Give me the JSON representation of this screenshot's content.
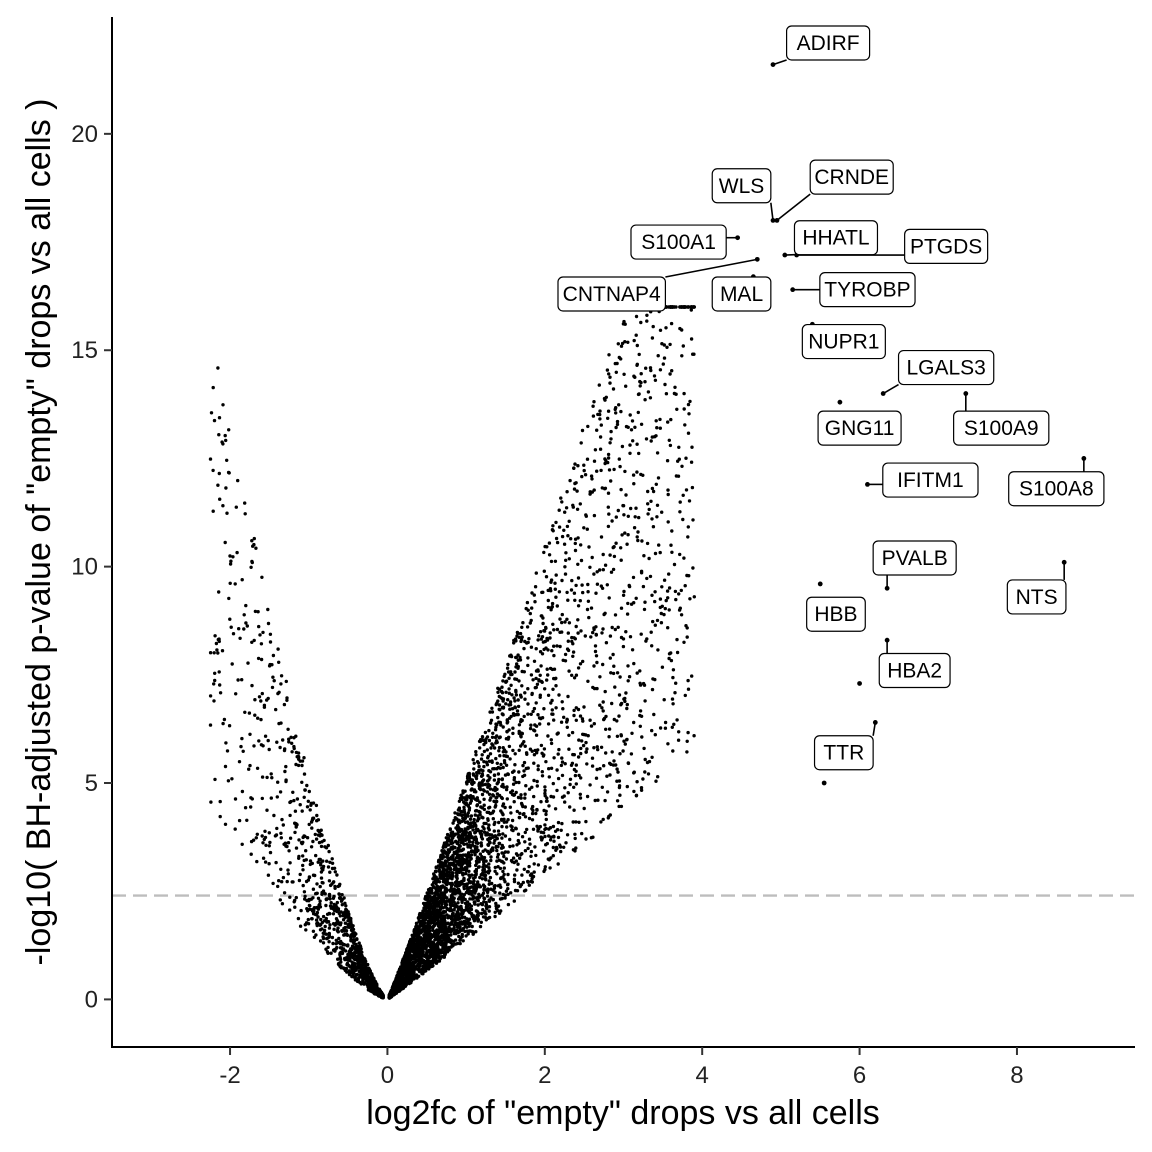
{
  "chart_data": {
    "type": "scatter",
    "title": "",
    "xlabel": "log2fc of \"empty\" drops vs all cells",
    "ylabel": "-log10( BH-adjusted p-value of \"empty\" drops vs all cells )",
    "xlim": [
      -3.5,
      9.5
    ],
    "ylim": [
      -1.1,
      22.7
    ],
    "x_ticks": [
      -2,
      0,
      2,
      4,
      6,
      8
    ],
    "y_ticks": [
      0,
      5,
      10,
      15,
      20
    ],
    "x_tick_labels": [
      "-2",
      "0",
      "2",
      "4",
      "6",
      "8"
    ],
    "y_tick_labels": [
      "0",
      "5",
      "10",
      "15",
      "20"
    ],
    "grid": false,
    "legend": "none",
    "threshold_line": {
      "y": 2.4,
      "style": "dashed",
      "color": "#bdbdbd"
    },
    "point_color": "#000000",
    "background_points": {
      "count": 5200,
      "description_shape": "volcano",
      "x_range": [
        -2.9,
        8.9
      ],
      "y_range": [
        0,
        21.6
      ]
    },
    "highlighted_points": [
      {
        "gene": "ADIRF",
        "x": 4.9,
        "y": 21.6,
        "label_x": 5.6,
        "label_y": 22.1
      },
      {
        "gene": "WLS",
        "x": 4.9,
        "y": 18.0,
        "label_x": 4.5,
        "label_y": 18.8
      },
      {
        "gene": "CRNDE",
        "x": 4.95,
        "y": 18.0,
        "label_x": 5.9,
        "label_y": 19.0
      },
      {
        "gene": "S100A1",
        "x": 4.45,
        "y": 17.6,
        "label_x": 3.7,
        "label_y": 17.5
      },
      {
        "gene": "HHATL",
        "x": 5.05,
        "y": 17.2,
        "label_x": 5.7,
        "label_y": 17.6
      },
      {
        "gene": "PTGDS",
        "x": 5.2,
        "y": 17.2,
        "label_x": 7.1,
        "label_y": 17.4
      },
      {
        "gene": "CNTNAP4",
        "x": 4.7,
        "y": 17.1,
        "label_x": 2.85,
        "label_y": 16.3
      },
      {
        "gene": "MAL",
        "x": 4.65,
        "y": 16.7,
        "label_x": 4.5,
        "label_y": 16.3
      },
      {
        "gene": "TYROBP",
        "x": 5.15,
        "y": 16.4,
        "label_x": 6.1,
        "label_y": 16.4
      },
      {
        "gene": "NUPR1",
        "x": 5.4,
        "y": 15.6,
        "label_x": 5.8,
        "label_y": 15.2
      },
      {
        "gene": "LGALS3",
        "x": 6.3,
        "y": 14.0,
        "label_x": 7.1,
        "label_y": 14.6
      },
      {
        "gene": "S100A9",
        "x": 7.35,
        "y": 14.0,
        "label_x": 7.8,
        "label_y": 13.2
      },
      {
        "gene": "GNG11",
        "x": 5.75,
        "y": 13.8,
        "label_x": 6.0,
        "label_y": 13.2
      },
      {
        "gene": "IFITM1",
        "x": 6.1,
        "y": 11.9,
        "label_x": 6.9,
        "label_y": 12.0
      },
      {
        "gene": "S100A8",
        "x": 8.85,
        "y": 12.5,
        "label_x": 8.5,
        "label_y": 11.8
      },
      {
        "gene": "PVALB",
        "x": 6.35,
        "y": 9.5,
        "label_x": 6.7,
        "label_y": 10.2
      },
      {
        "gene": "NTS",
        "x": 8.6,
        "y": 10.1,
        "label_x": 8.25,
        "label_y": 9.3
      },
      {
        "gene": "HBB",
        "x": 5.5,
        "y": 9.6,
        "label_x": 5.7,
        "label_y": 8.9
      },
      {
        "gene": "HBA2",
        "x": 6.35,
        "y": 8.3,
        "label_x": 6.7,
        "label_y": 7.6
      },
      {
        "gene": "TTR",
        "x": 6.2,
        "y": 6.4,
        "label_x": 5.8,
        "label_y": 5.7
      },
      {
        "gene": "",
        "x": 6.0,
        "y": 7.3
      },
      {
        "gene": "",
        "x": 5.55,
        "y": 5.0
      }
    ]
  }
}
